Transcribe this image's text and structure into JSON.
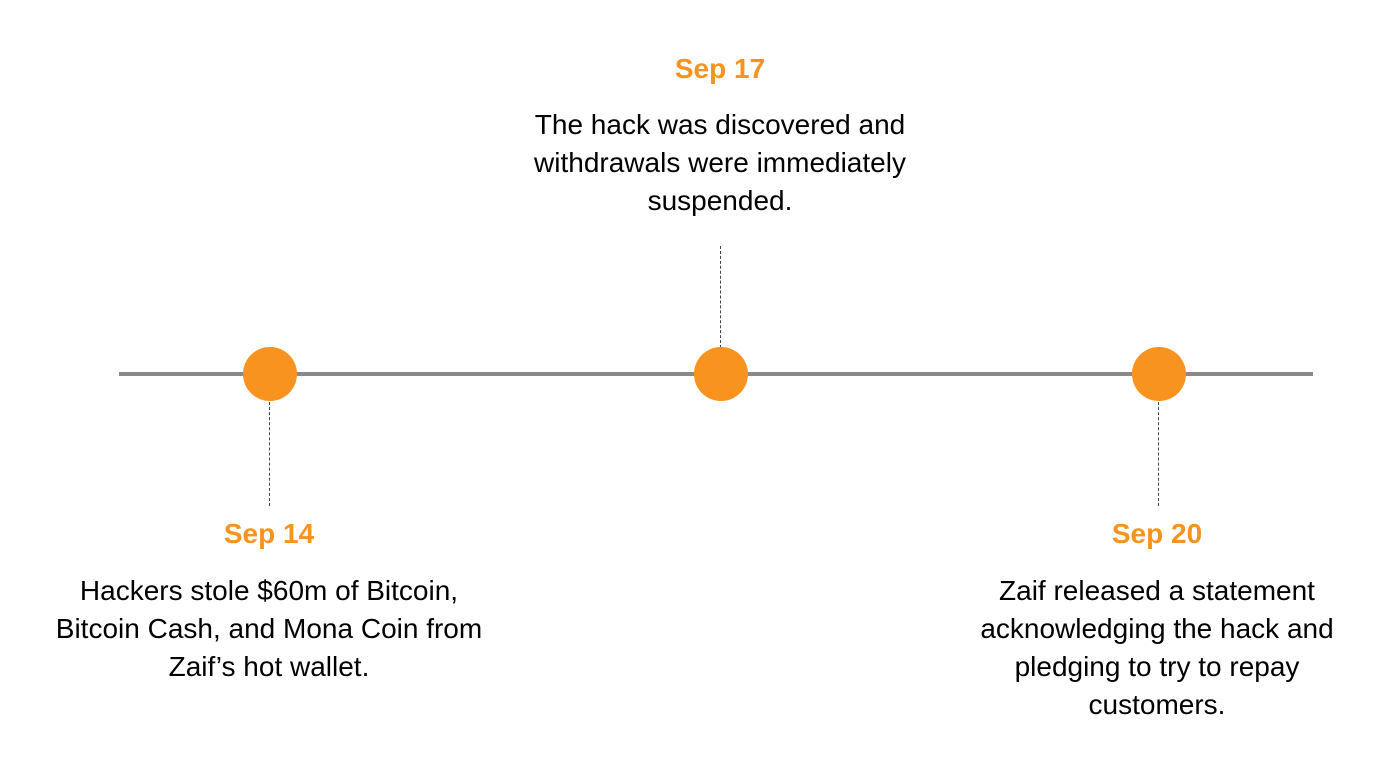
{
  "timeline": {
    "accent_color": "#f7931e",
    "line_color": "#8a8a8a",
    "events": [
      {
        "date": "Sep 14",
        "description": "Hackers stole $60m of Bitcoin, Bitcoin Cash, and Mona Coin from Zaif’s hot wallet."
      },
      {
        "date": "Sep 17",
        "description": "The hack was discovered and withdrawals were immediately suspended."
      },
      {
        "date": "Sep 20",
        "description": "Zaif released a statement acknowledging the hack and pledging to try to repay customers."
      }
    ]
  }
}
